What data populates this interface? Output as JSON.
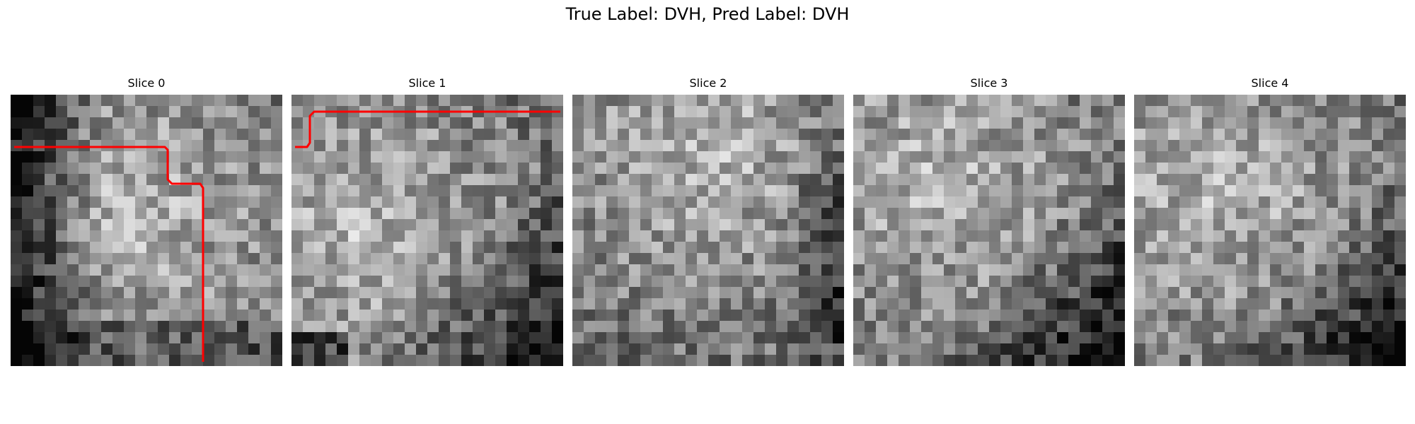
{
  "figure": {
    "title": "True Label: DVH, Pred Label: DVH"
  },
  "panels": [
    {
      "title": "Slice 0",
      "seed": 11,
      "bright_center": [
        0.45,
        0.45
      ],
      "dark_corner": "left",
      "contour_color": "#ff0000",
      "has_contour": true
    },
    {
      "title": "Slice 1",
      "seed": 23,
      "bright_center": [
        0.25,
        0.5
      ],
      "dark_corner": "bottom-right",
      "contour_color": "#ff0000",
      "has_contour": true
    },
    {
      "title": "Slice 2",
      "seed": 37,
      "bright_center": [
        0.5,
        0.2
      ],
      "dark_corner": "right",
      "contour_color": "#ff0000",
      "has_contour": false
    },
    {
      "title": "Slice 3",
      "seed": 41,
      "bright_center": [
        0.3,
        0.3
      ],
      "dark_corner": "bottom-right",
      "contour_color": "#ff0000",
      "has_contour": false
    },
    {
      "title": "Slice 4",
      "seed": 53,
      "bright_center": [
        0.3,
        0.35
      ],
      "dark_corner": "bottom-right",
      "contour_color": "#ff0000",
      "has_contour": false
    }
  ]
}
